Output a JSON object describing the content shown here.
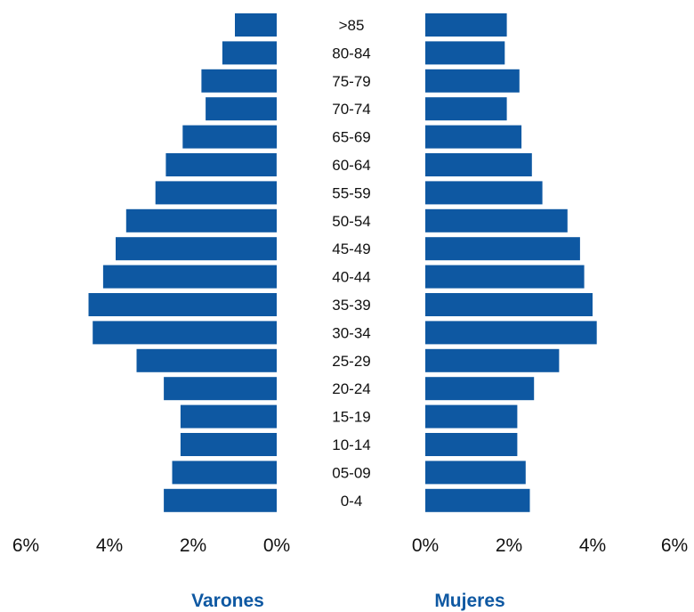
{
  "chart_data": {
    "type": "bar",
    "orientation": "horizontal",
    "categories": [
      ">85",
      "80-84",
      "75-79",
      "70-74",
      "65-69",
      "60-64",
      "55-59",
      "50-54",
      "45-49",
      "40-44",
      "35-39",
      "30-34",
      "25-29",
      "20-24",
      "15-19",
      "10-14",
      "05-09",
      "0-4"
    ],
    "series": [
      {
        "name": "Varones",
        "values": [
          1.0,
          1.3,
          1.8,
          1.7,
          2.25,
          2.65,
          2.9,
          3.6,
          3.85,
          4.15,
          4.5,
          4.4,
          3.35,
          2.7,
          2.3,
          2.3,
          2.5,
          2.7
        ]
      },
      {
        "name": "Mujeres",
        "values": [
          1.95,
          1.9,
          2.25,
          1.95,
          2.3,
          2.55,
          2.8,
          3.4,
          3.7,
          3.8,
          4.0,
          4.1,
          3.2,
          2.6,
          2.2,
          2.2,
          2.4,
          2.5
        ]
      }
    ],
    "x_ticks_left": [
      "6%",
      "4%",
      "2%",
      "0%"
    ],
    "x_ticks_right": [
      "0%",
      "2%",
      "4%",
      "6%"
    ],
    "xlim": [
      0,
      6
    ],
    "grid": false,
    "legend_position": "bottom",
    "colors": {
      "bar": "#0E58A2",
      "legend_text": "#0E58A2"
    }
  }
}
